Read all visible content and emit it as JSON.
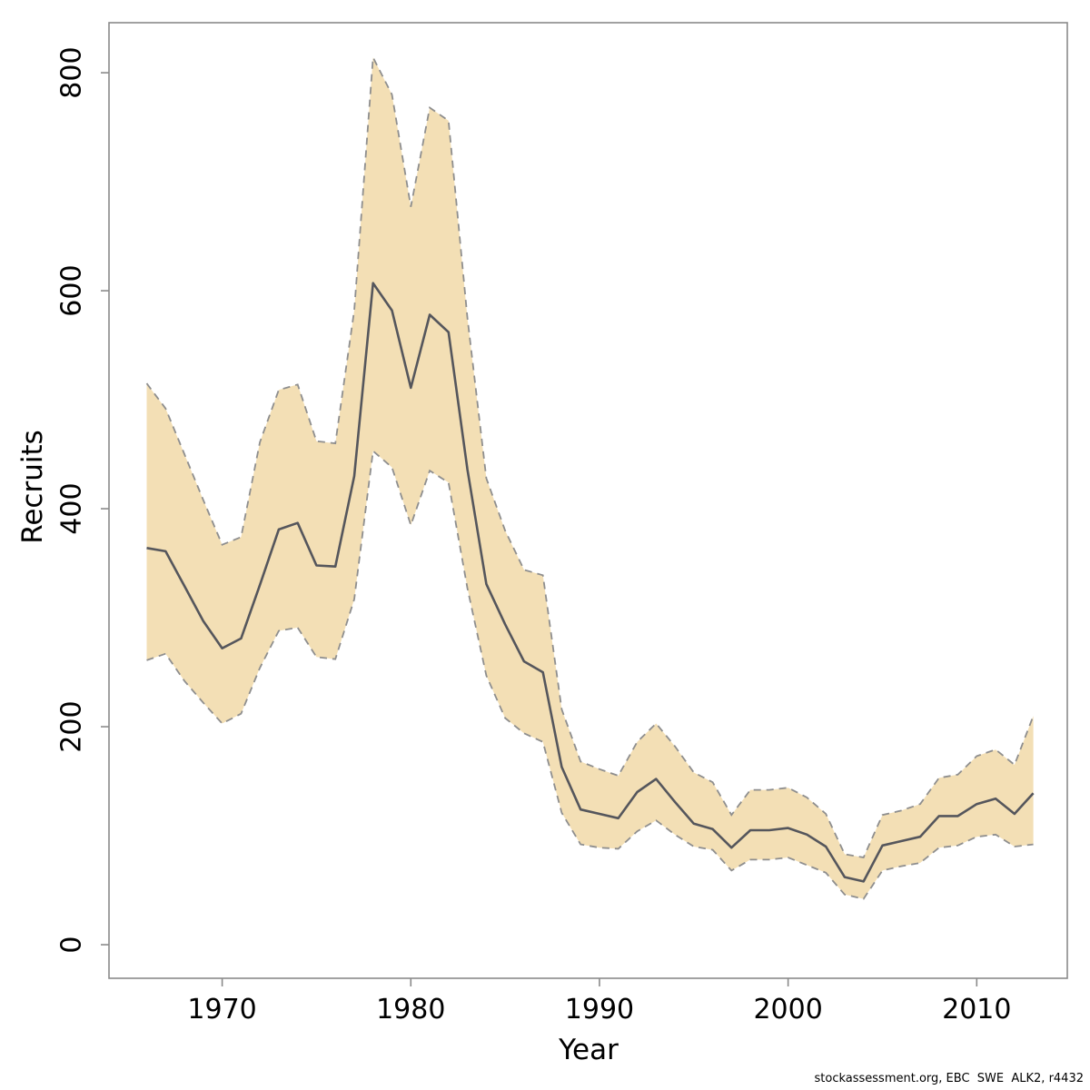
{
  "watermark": "stockassessment.org, EBC  SWE  ALK2, r4432",
  "chart_data": {
    "type": "line",
    "title": "",
    "xlabel": "Year",
    "ylabel": "Recruits",
    "x_ticks": [
      1970,
      1980,
      1990,
      2000,
      2010
    ],
    "y_ticks": [
      0,
      200,
      400,
      600,
      800
    ],
    "xlim": [
      1964.0,
      2014.8
    ],
    "ylim": [
      -30.8,
      845.9
    ],
    "grid": false,
    "legend_position": "none",
    "years": [
      1966,
      1967,
      1968,
      1969,
      1970,
      1971,
      1972,
      1973,
      1974,
      1975,
      1976,
      1977,
      1978,
      1979,
      1980,
      1981,
      1982,
      1983,
      1984,
      1985,
      1986,
      1987,
      1988,
      1989,
      1990,
      1991,
      1992,
      1993,
      1994,
      1995,
      1996,
      1997,
      1998,
      1999,
      2000,
      2001,
      2002,
      2003,
      2004,
      2005,
      2006,
      2007,
      2008,
      2009,
      2010,
      2011,
      2012,
      2013
    ],
    "series": [
      {
        "name": "recruits_mean",
        "values": [
          364,
          361,
          329,
          297,
          272,
          281,
          330,
          381,
          387,
          348,
          347,
          430,
          607,
          582,
          511,
          578,
          562,
          436,
          331,
          294,
          260,
          250,
          163,
          124,
          120,
          116,
          140,
          152,
          131,
          111,
          106,
          89,
          105,
          105,
          107,
          101,
          90,
          62,
          58,
          91,
          95,
          99,
          118,
          118,
          129,
          134,
          120,
          139
        ]
      },
      {
        "name": "ci_lower",
        "values": [
          261,
          267,
          242,
          222,
          203,
          212,
          254,
          288,
          291,
          264,
          262,
          317,
          453,
          438,
          385,
          435,
          424,
          327,
          247,
          208,
          194,
          186,
          121,
          92,
          89,
          88,
          104,
          114,
          101,
          90,
          87,
          68,
          78,
          78,
          80,
          73,
          66,
          46,
          42,
          68,
          72,
          75,
          89,
          91,
          99,
          101,
          90,
          92
        ]
      },
      {
        "name": "ci_upper",
        "values": [
          515,
          492,
          450,
          408,
          367,
          374,
          461,
          509,
          514,
          462,
          460,
          582,
          814,
          780,
          677,
          768,
          756,
          575,
          428,
          380,
          344,
          339,
          216,
          168,
          161,
          155,
          186,
          203,
          182,
          158,
          149,
          119,
          142,
          142,
          144,
          135,
          120,
          83,
          80,
          119,
          123,
          129,
          153,
          156,
          173,
          179,
          165,
          210
        ]
      }
    ],
    "colors": {
      "band_fill": "#F3DFB5",
      "band_edge": "#8E8E8E",
      "mean_line": "#55565C",
      "box": "#8A8A8A",
      "text": "#000000"
    }
  }
}
